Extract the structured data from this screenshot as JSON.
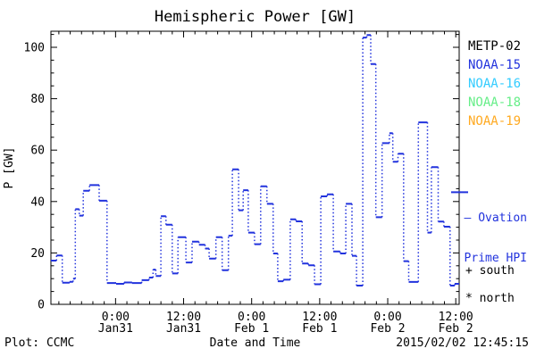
{
  "chart_data": {
    "type": "step-line",
    "title": "Hemispheric Power [GW]",
    "xlabel": "Date and Time",
    "ylabel": "P [GW]",
    "ylim": [
      0,
      106.25
    ],
    "y_ticks": [
      0,
      20,
      40,
      60,
      80,
      100
    ],
    "y_minor_step": 5,
    "x_span_hours": 72,
    "x_ticks": [
      {
        "hour": 11.4,
        "time": "0:00",
        "date": "Jan31"
      },
      {
        "hour": 23.4,
        "time": "12:00",
        "date": "Jan31"
      },
      {
        "hour": 35.4,
        "time": "0:00",
        "date": "Feb 1"
      },
      {
        "hour": 47.4,
        "time": "12:00",
        "date": "Feb 1"
      },
      {
        "hour": 59.4,
        "time": "0:00",
        "date": "Feb 2"
      },
      {
        "hour": 71.4,
        "time": "12:00",
        "date": "Feb 2"
      }
    ],
    "x_minor_start": 1.4,
    "x_minor_step": 2,
    "grid": false,
    "series": [
      {
        "name": "NOAA-15 Hemispheric Power",
        "color": "#2233dd",
        "steps": [
          [
            0,
            17
          ],
          [
            1,
            19
          ],
          [
            2,
            8.4
          ],
          [
            3.3,
            8.8
          ],
          [
            3.9,
            10
          ],
          [
            4.3,
            37
          ],
          [
            5.0,
            34.5
          ],
          [
            5.7,
            44.2
          ],
          [
            6.8,
            46.4
          ],
          [
            8.5,
            40.3
          ],
          [
            9.9,
            8.3
          ],
          [
            11.5,
            8.0
          ],
          [
            12.9,
            8.5
          ],
          [
            14.3,
            8.3
          ],
          [
            16.0,
            9.4
          ],
          [
            17.3,
            10.4
          ],
          [
            18.0,
            13.5
          ],
          [
            18.5,
            11.0
          ],
          [
            19.4,
            34.3
          ],
          [
            20.3,
            31.0
          ],
          [
            21.4,
            12.0
          ],
          [
            22.4,
            26.1
          ],
          [
            23.8,
            16.3
          ],
          [
            24.9,
            24.4
          ],
          [
            26.1,
            23.2
          ],
          [
            27.2,
            21.7
          ],
          [
            27.9,
            17.8
          ],
          [
            29.1,
            26.1
          ],
          [
            30.2,
            13.3
          ],
          [
            31.3,
            26.7
          ],
          [
            32.0,
            52.5
          ],
          [
            33.1,
            36.6
          ],
          [
            33.9,
            44.4
          ],
          [
            34.8,
            27.9
          ],
          [
            35.9,
            23.4
          ],
          [
            37.0,
            45.9
          ],
          [
            38.1,
            39.1
          ],
          [
            39.2,
            19.8
          ],
          [
            40.0,
            9.0
          ],
          [
            41.0,
            9.6
          ],
          [
            42.2,
            33.1
          ],
          [
            43.2,
            32.3
          ],
          [
            44.3,
            15.9
          ],
          [
            45.4,
            15.2
          ],
          [
            46.5,
            7.8
          ],
          [
            47.6,
            42.0
          ],
          [
            48.7,
            42.8
          ],
          [
            49.8,
            20.6
          ],
          [
            51.0,
            19.8
          ],
          [
            52.0,
            39.1
          ],
          [
            53.1,
            18.9
          ],
          [
            53.9,
            7.3
          ],
          [
            55.0,
            103.8
          ],
          [
            55.7,
            104.8
          ],
          [
            56.4,
            93.5
          ],
          [
            57.3,
            33.9
          ],
          [
            58.4,
            62.7
          ],
          [
            59.7,
            66.6
          ],
          [
            60.3,
            55.5
          ],
          [
            61.2,
            58.6
          ],
          [
            62.2,
            16.8
          ],
          [
            63.1,
            8.7
          ],
          [
            64.8,
            70.8
          ],
          [
            66.4,
            27.9
          ],
          [
            67.1,
            53.4
          ],
          [
            68.3,
            32.2
          ],
          [
            69.3,
            30.2
          ],
          [
            70.4,
            7.3
          ],
          [
            71.2,
            8.0
          ]
        ],
        "end_hour": 72
      }
    ],
    "legend": {
      "position": "right",
      "entries": [
        {
          "label": "METP-02",
          "color": "#000000"
        },
        {
          "label": "NOAA-15",
          "color": "#2233dd"
        },
        {
          "label": "NOAA-16",
          "color": "#33ccff"
        },
        {
          "label": "NOAA-18",
          "color": "#66ee88"
        },
        {
          "label": "NOAA-19",
          "color": "#ffaa22"
        }
      ]
    },
    "annotations": {
      "ovation_line1": "– Ovation",
      "ovation_line2": "Prime HPI",
      "ovation_value": 43.6,
      "ovation_color": "#2233dd",
      "south_label": "+ south",
      "north_label": "* north"
    }
  },
  "footer": {
    "plot_credit": "Plot: CCMC",
    "timestamp": "2015/02/02 12:45:15"
  }
}
